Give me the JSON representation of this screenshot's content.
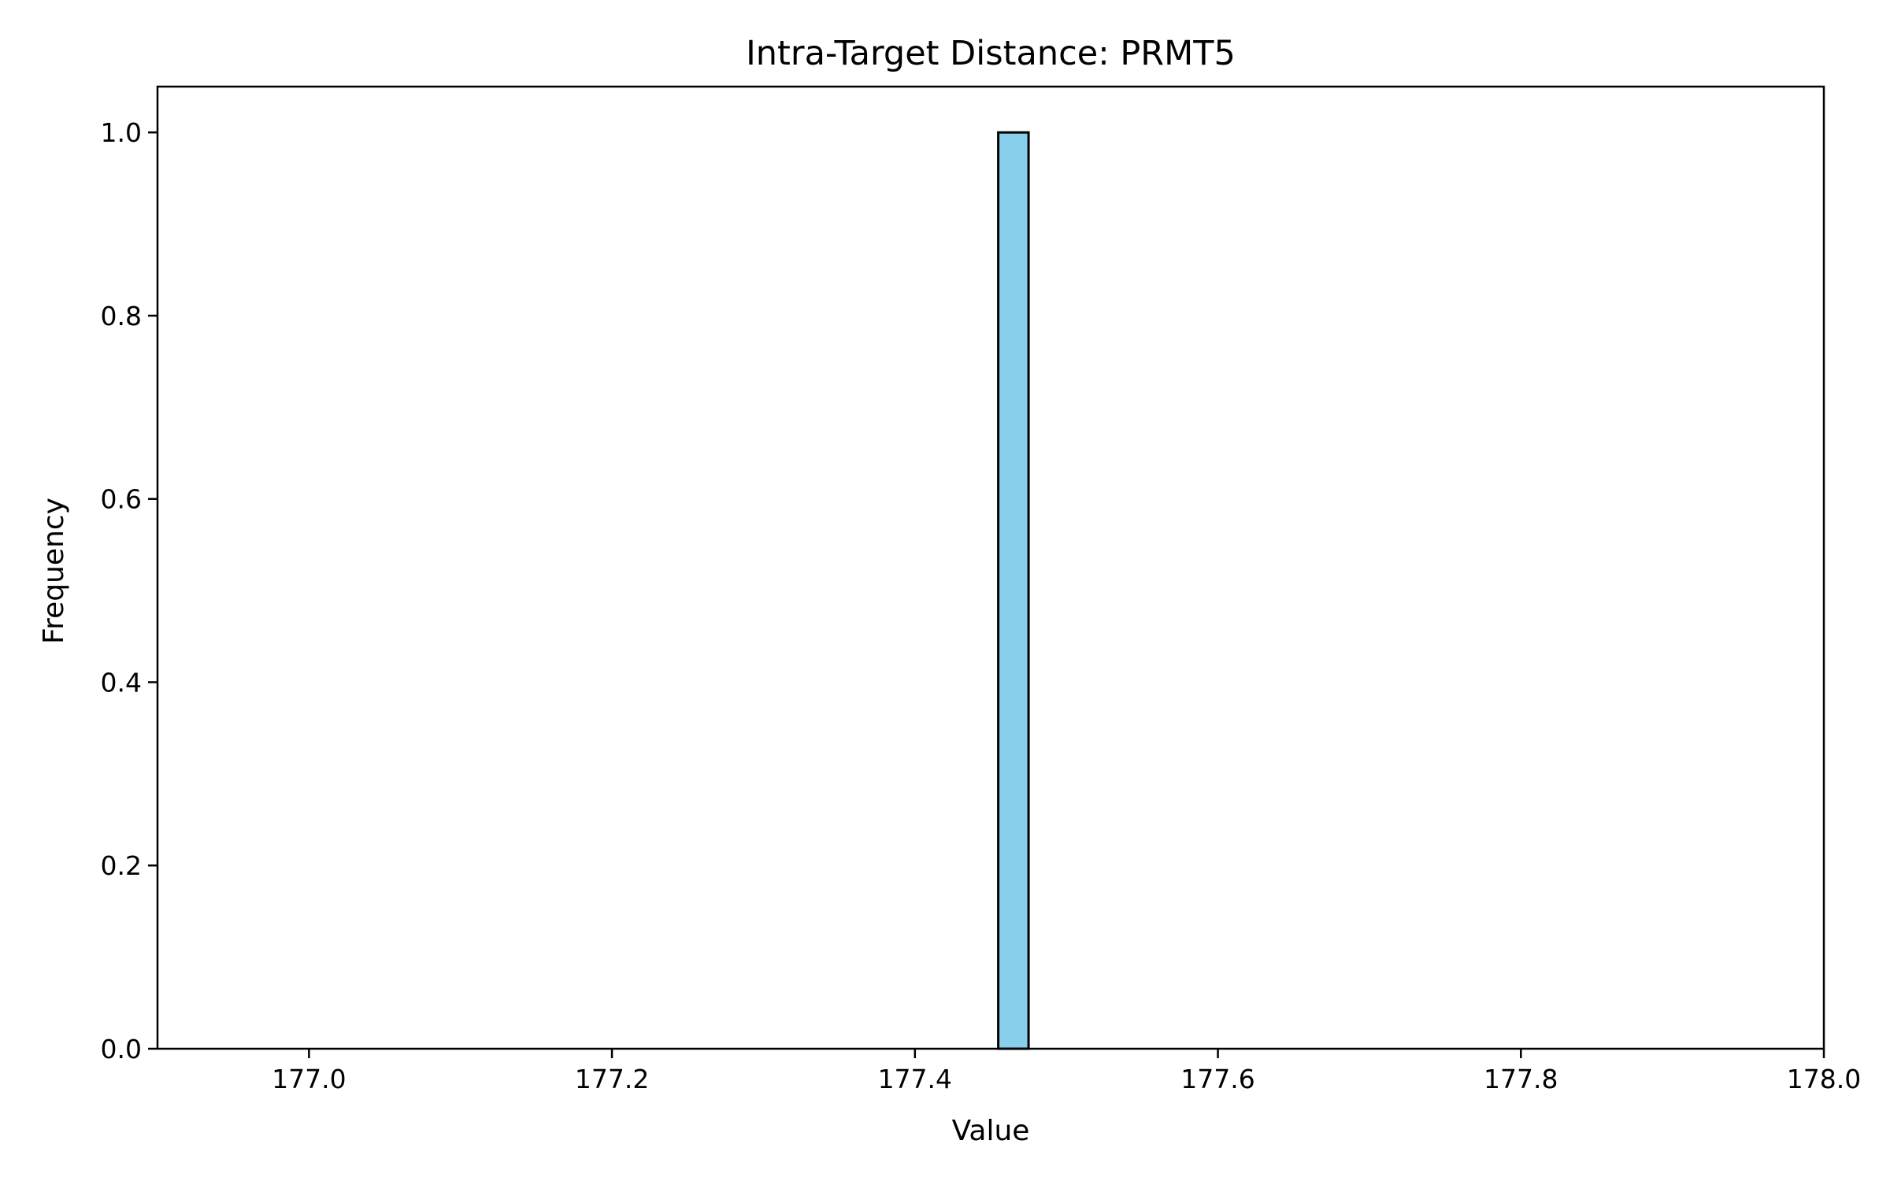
{
  "chart_data": {
    "type": "histogram",
    "title": "Intra-Target Distance: PRMT5",
    "xlabel": "Value",
    "ylabel": "Frequency",
    "xlim": [
      176.9,
      178.0
    ],
    "ylim": [
      0.0,
      1.05
    ],
    "x_ticks": [
      "177.0",
      "177.2",
      "177.4",
      "177.6",
      "177.8",
      "178.0"
    ],
    "y_ticks": [
      "0.0",
      "0.2",
      "0.4",
      "0.6",
      "0.8",
      "1.0"
    ],
    "bin_range": [
      176.955,
      177.955
    ],
    "bin_count": 50,
    "bins": [
      {
        "x0": 177.455,
        "x1": 177.475,
        "count": 1
      }
    ],
    "bar_fill": "#87ceeb",
    "bar_edge": "#000000",
    "grid": false,
    "legend": "none"
  }
}
